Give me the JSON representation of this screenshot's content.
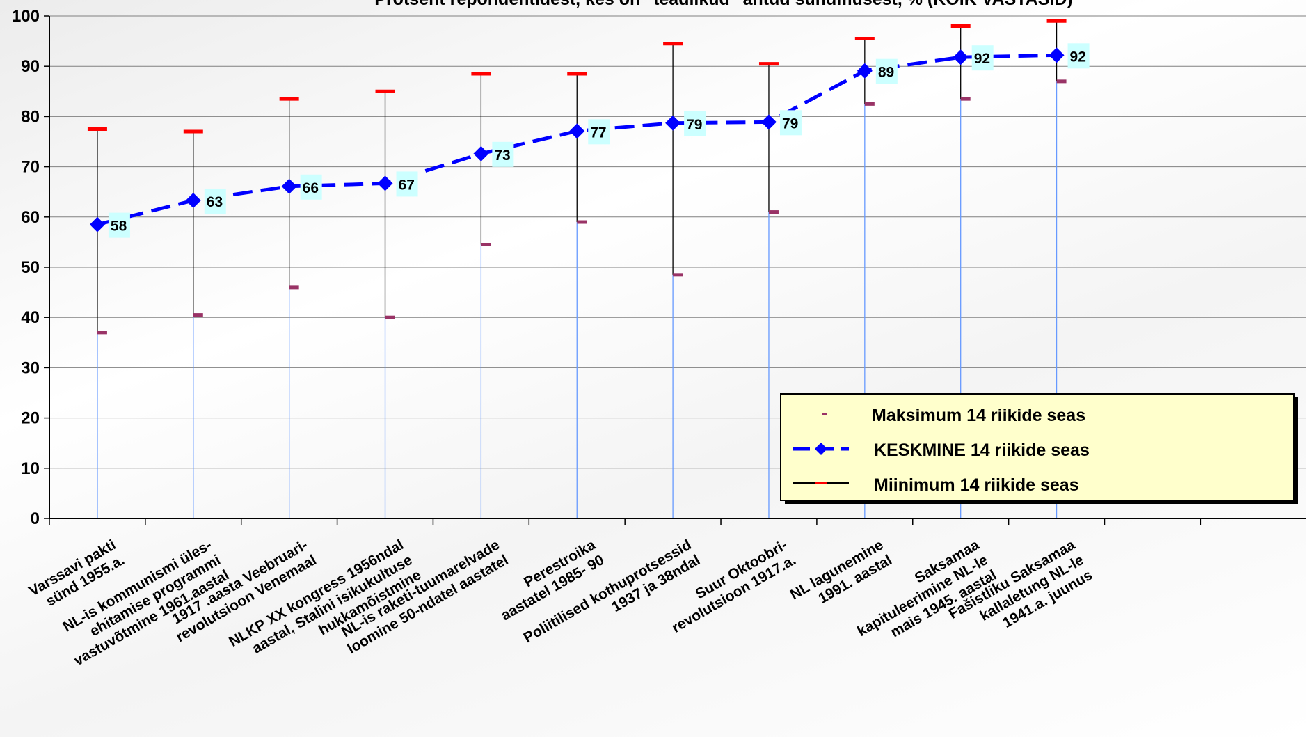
{
  "chart_data": {
    "type": "line",
    "title": "Protsent repondentidest, kes on \"teadlikud\" antud sündmusest, % (KÕIK VASTASID)",
    "ylim": [
      0,
      100
    ],
    "yticks": [
      0,
      10,
      20,
      30,
      40,
      50,
      60,
      70,
      80,
      90,
      100
    ],
    "grid": true,
    "legend_position": "bottom-right",
    "categories": [
      [
        "Varssavi pakti",
        "sünd 1955.a."
      ],
      [
        "NL-is kommunismi üles-",
        "ehitamise programmi",
        "vastuvõtmine 1961.aastal"
      ],
      [
        "1917 .aasta Veebruari-",
        "revolutsioon Venemaal"
      ],
      [
        "NLKP XX kongress 1956ndal",
        "aastal, Stalini isikukultuse",
        "hukkamõistmine"
      ],
      [
        "NL-is raketi-tuumarelvade",
        "loomine 50-ndatel aastatel"
      ],
      [
        "Perestroika",
        "aastatel 1985- 90"
      ],
      [
        "Poliitilised kothuprotsessid",
        "1937 ja 38ndal"
      ],
      [
        "Suur Oktoobri-",
        "revolutsioon 1917.a."
      ],
      [
        "NL lagunemine",
        "1991. aastal"
      ],
      [
        "Saksamaa",
        "kapituleerimine NL-le",
        "mais 1945. aastal"
      ],
      [
        "Fašistliku Saksamaa",
        "kallaletung  NL-le",
        "1941.a. juunus"
      ]
    ],
    "series": [
      {
        "name": "Maksimum 14 riikide seas",
        "values": [
          77.5,
          77,
          83.5,
          85,
          88.5,
          88.5,
          94.5,
          90.5,
          95.5,
          98,
          99
        ]
      },
      {
        "name": "KESKMINE 14 riikide seas",
        "values": [
          58.5,
          63.3,
          66.1,
          66.7,
          72.6,
          77.1,
          78.7,
          78.9,
          89.1,
          91.8,
          92.2
        ],
        "labels": [
          "58",
          "63",
          "66",
          "67",
          "73",
          "77",
          "79",
          "79",
          "89",
          "92",
          "92"
        ]
      },
      {
        "name": "Miinimum 14 riikide seas",
        "values": [
          37,
          40.5,
          46,
          40,
          54.5,
          59,
          48.5,
          61,
          82.5,
          83.5,
          87
        ]
      }
    ],
    "colors": {
      "mean": "#0000ff",
      "max_marker": "#ff0000",
      "min_marker": "#993366",
      "drop_line": "#6699ff",
      "label_bg": "#ccffff",
      "legend_bg": "#ffffcc"
    }
  }
}
